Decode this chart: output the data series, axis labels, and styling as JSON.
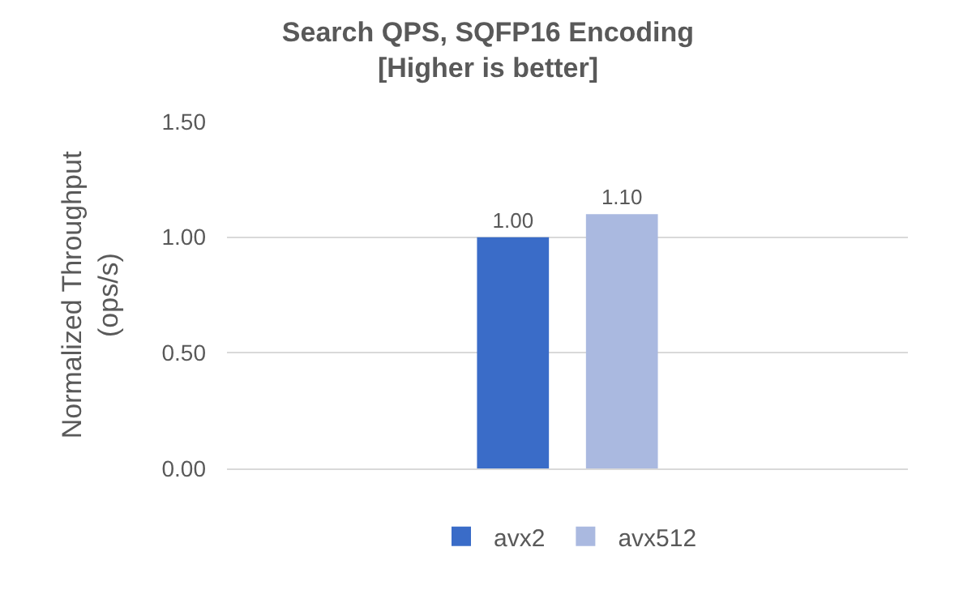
{
  "chart_data": {
    "type": "bar",
    "title": "Search QPS, SQFP16 Encoding\n[Higher is better]",
    "ylabel": "Normalized Throughput\n(ops/s)",
    "categories": [
      null
    ],
    "series": [
      {
        "name": "avx2",
        "color": "#3a6cc8",
        "values": [
          1.0
        ],
        "value_labels": [
          "1.00"
        ]
      },
      {
        "name": "avx512",
        "color": "#aab9e0",
        "values": [
          1.1
        ],
        "value_labels": [
          "1.10"
        ]
      }
    ],
    "ylim": [
      0,
      1.5
    ],
    "yticks": [
      {
        "value": 0,
        "label": "0.00"
      },
      {
        "value": 0.5,
        "label": "0.50"
      },
      {
        "value": 1,
        "label": "1.00"
      },
      {
        "value": 1.5,
        "label": "1.50"
      }
    ],
    "grid": "y",
    "legend": "bottom"
  }
}
